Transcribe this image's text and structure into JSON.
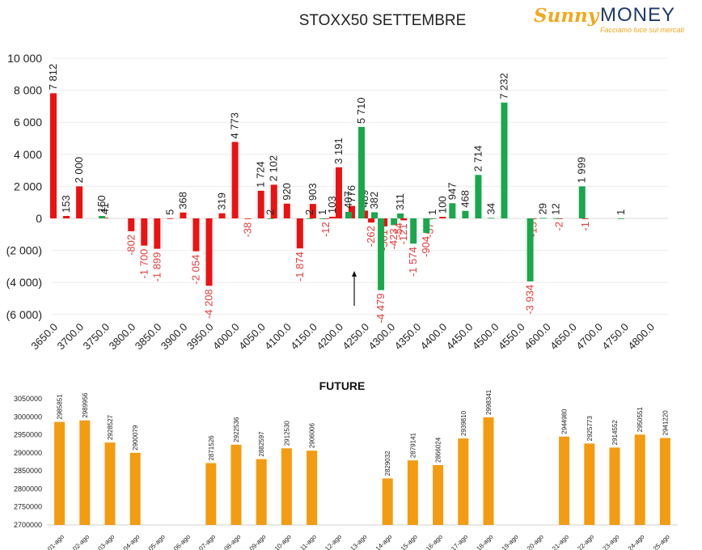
{
  "header": {
    "title": "STOXX50 SETTEMBRE",
    "logo_sunny": "Sunny",
    "logo_money": "MONEY",
    "logo_tagline": "Facciamo luce sui mercati"
  },
  "future_title": "FUTURE",
  "colors": {
    "negative": "#ee1111",
    "positive": "#19a84c",
    "future": "#f39c12",
    "text": "#222222",
    "neg_label": "#e83a3a"
  },
  "chart_data": [
    {
      "type": "bar",
      "title": "STOXX50 SETTEMBRE",
      "ylim": [
        -6000,
        10000
      ],
      "yticks": [
        10000,
        8000,
        6000,
        4000,
        2000,
        0,
        -2000,
        -4000,
        -6000
      ],
      "ytick_labels": [
        "10 000",
        "8 000",
        "6 000",
        "4 000",
        "2 000",
        "0",
        "(2 000)",
        "(4 000)",
        "(6 000)"
      ],
      "x_tick_labels": [
        "3650.0",
        "3700.0",
        "3750.0",
        "3800.0",
        "3850.0",
        "3900.0",
        "3950.0",
        "4000.0",
        "4050.0",
        "4100.0",
        "4150.0",
        "4200.0",
        "4250.0",
        "4300.0",
        "4350.0",
        "4400.0",
        "4450.0",
        "4500.0",
        "4550.0",
        "4600.0",
        "4650.0",
        "4700.0",
        "4750.0",
        "4800.0"
      ],
      "x_range": [
        3650,
        4800
      ],
      "marker_strike": 4237.5,
      "series": [
        {
          "color": "red",
          "points": [
            {
              "x": 3650,
              "y": 7812,
              "label": "7 812"
            },
            {
              "x": 3675,
              "y": 153,
              "label": "153"
            },
            {
              "x": 3700,
              "y": 2000,
              "label": "2 000"
            },
            {
              "x": 3750,
              "y": 41,
              "label": "41"
            },
            {
              "x": 3800,
              "y": -802,
              "label": "-802"
            },
            {
              "x": 3825,
              "y": -1700,
              "label": "-1 700"
            },
            {
              "x": 3850,
              "y": -1899,
              "label": "-1 899"
            },
            {
              "x": 3875,
              "y": 5,
              "label": "5"
            },
            {
              "x": 3900,
              "y": 368,
              "label": "368"
            },
            {
              "x": 3925,
              "y": -2054,
              "label": "-2 054"
            },
            {
              "x": 3950,
              "y": -4208,
              "label": "-4 208"
            },
            {
              "x": 3975,
              "y": 319,
              "label": "319"
            },
            {
              "x": 4000,
              "y": 4773,
              "label": "4 773"
            },
            {
              "x": 4025,
              "y": -38,
              "label": "-38"
            },
            {
              "x": 4050,
              "y": 1724,
              "label": "1 724"
            },
            {
              "x": 4075,
              "y": 2102,
              "label": "2 102"
            },
            {
              "x": 4100,
              "y": 920,
              "label": "920"
            },
            {
              "x": 4125,
              "y": -1874,
              "label": "-1 874"
            },
            {
              "x": 4150,
              "y": 903,
              "label": "903"
            },
            {
              "x": 4175,
              "y": -12,
              "label": "-12"
            },
            {
              "x": 4187.5,
              "y": 103,
              "label": "103"
            },
            {
              "x": 4200,
              "y": 3191,
              "label": "3 191"
            },
            {
              "x": 4225,
              "y": 776,
              "label": "776"
            },
            {
              "x": 4250,
              "y": 489,
              "label": "489"
            },
            {
              "x": 4262.5,
              "y": -262,
              "label": "-262"
            },
            {
              "x": 4287.5,
              "y": -501,
              "label": "-501"
            },
            {
              "x": 4325,
              "y": -121,
              "label": "-121"
            },
            {
              "x": 4375,
              "y": -57,
              "label": "-57"
            },
            {
              "x": 4400,
              "y": 100,
              "label": "100"
            },
            {
              "x": 4575,
              "y": -15,
              "label": "-15"
            },
            {
              "x": 4625,
              "y": -2,
              "label": "-2"
            },
            {
              "x": 4675,
              "y": -1,
              "label": "-1"
            }
          ]
        },
        {
          "color": "green",
          "points": [
            {
              "x": 3737.5,
              "y": 150,
              "label": "150"
            },
            {
              "x": 4062.5,
              "y": 2,
              "label": "2"
            },
            {
              "x": 4137.5,
              "y": 2,
              "label": "2"
            },
            {
              "x": 4162.5,
              "y": 1,
              "label": "1"
            },
            {
              "x": 4212.5,
              "y": 407,
              "label": "407"
            },
            {
              "x": 4237.5,
              "y": 5710,
              "label": "5 710"
            },
            {
              "x": 4262.5,
              "y": 382,
              "label": "382"
            },
            {
              "x": 4275,
              "y": -4479,
              "label": "-4 479"
            },
            {
              "x": 4300,
              "y": -423,
              "label": "-423"
            },
            {
              "x": 4312.5,
              "y": 311,
              "label": "311"
            },
            {
              "x": 4337.5,
              "y": -1574,
              "label": "-1 574"
            },
            {
              "x": 4362.5,
              "y": -904,
              "label": "-904"
            },
            {
              "x": 4375,
              "y": 1,
              "label": "1"
            },
            {
              "x": 4412.5,
              "y": 947,
              "label": "947"
            },
            {
              "x": 4437.5,
              "y": 468,
              "label": "468"
            },
            {
              "x": 4462.5,
              "y": 2714,
              "label": "2 714"
            },
            {
              "x": 4487.5,
              "y": 34,
              "label": "34"
            },
            {
              "x": 4512.5,
              "y": 7232,
              "label": "7 232"
            },
            {
              "x": 4562.5,
              "y": -3934,
              "label": "-3 934"
            },
            {
              "x": 4587.5,
              "y": 29,
              "label": "29"
            },
            {
              "x": 4612.5,
              "y": 12,
              "label": "12"
            },
            {
              "x": 4662.5,
              "y": 1999,
              "label": "1 999"
            },
            {
              "x": 4737.5,
              "y": 1,
              "label": "1"
            }
          ]
        }
      ],
      "extra_labels": [
        {
          "x": 4312.5,
          "y": -54,
          "label": "-54",
          "color": "red"
        }
      ]
    },
    {
      "type": "bar",
      "title": "FUTURE",
      "ylim": [
        2700000,
        3050000
      ],
      "yticks": [
        3050000,
        3000000,
        2950000,
        2900000,
        2850000,
        2800000,
        2750000,
        2700000
      ],
      "categories": [
        "01-ago",
        "02-ago",
        "03-ago",
        "04-ago",
        "05-ago",
        "06-ago",
        "07-ago",
        "08-ago",
        "09-ago",
        "10-ago",
        "11-ago",
        "12-ago",
        "13-ago",
        "14-ago",
        "15-ago",
        "16-ago",
        "17-ago",
        "18-ago",
        "19-ago",
        "20-ago",
        "21-ago",
        "22-ago",
        "23-ago",
        "24-ago",
        "25-ago"
      ],
      "values": [
        2985851,
        2989956,
        2928527,
        2900079,
        null,
        null,
        2871526,
        2922536,
        2882597,
        2912530,
        2906006,
        null,
        null,
        2829032,
        2879141,
        2866024,
        2939810,
        2998341,
        null,
        null,
        2944980,
        2925773,
        2914552,
        2950551,
        2941220
      ]
    }
  ]
}
